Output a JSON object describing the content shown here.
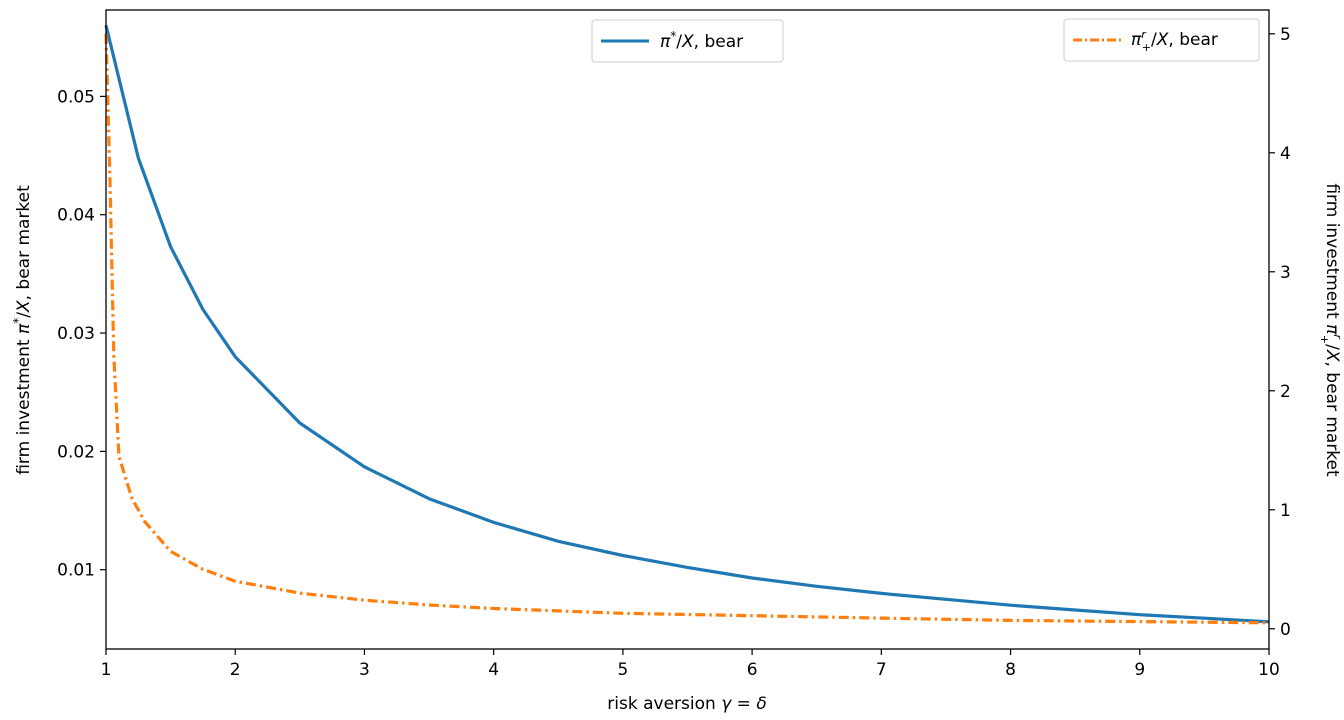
{
  "chart_data": {
    "type": "line",
    "xlabel": "risk aversion γ = δ",
    "ylabel_left": "firm investment π*/X, bear market",
    "ylabel_right": "firm investment π^r_+/X, bear market",
    "xlim": [
      1,
      10
    ],
    "ylim_left": [
      0.0033,
      0.0573
    ],
    "ylim_right": [
      -0.17,
      5.2
    ],
    "x_ticks": [
      1,
      2,
      3,
      4,
      5,
      6,
      7,
      8,
      9,
      10
    ],
    "y_ticks_left": [
      0.01,
      0.02,
      0.03,
      0.04,
      0.05
    ],
    "y_ticks_right": [
      0,
      1,
      2,
      3,
      4,
      5
    ],
    "grid": false,
    "series": [
      {
        "name": "π*/X, bear",
        "axis": "left",
        "color": "#1f77b4",
        "style": "solid",
        "x": [
          1,
          1.25,
          1.5,
          1.75,
          2,
          2.5,
          3,
          3.5,
          4,
          4.5,
          5,
          5.5,
          6,
          6.5,
          7,
          7.5,
          8,
          8.5,
          9,
          9.5,
          10
        ],
        "y": [
          0.056,
          0.0448,
          0.0373,
          0.032,
          0.028,
          0.0224,
          0.0187,
          0.016,
          0.014,
          0.0124,
          0.0112,
          0.0102,
          0.0093,
          0.0086,
          0.008,
          0.0075,
          0.007,
          0.0066,
          0.0062,
          0.0059,
          0.0056
        ]
      },
      {
        "name": "π^r_+/X, bear",
        "axis": "right",
        "color": "#ff7f0e",
        "style": "dashdot",
        "x": [
          1,
          1.03,
          1.06,
          1.1,
          1.2,
          1.3,
          1.5,
          1.75,
          2,
          2.5,
          3,
          3.5,
          4,
          5,
          6,
          7,
          8,
          9,
          10
        ],
        "y": [
          5.0,
          3.8,
          2.3,
          1.45,
          1.1,
          0.9,
          0.65,
          0.5,
          0.4,
          0.3,
          0.24,
          0.2,
          0.17,
          0.13,
          0.11,
          0.09,
          0.07,
          0.06,
          0.05
        ]
      }
    ],
    "legends": [
      {
        "placement": "upper-center",
        "label": "π*/X, bear",
        "series": 0
      },
      {
        "placement": "upper-right",
        "label": "π^r_+/X, bear",
        "series": 1
      }
    ]
  }
}
